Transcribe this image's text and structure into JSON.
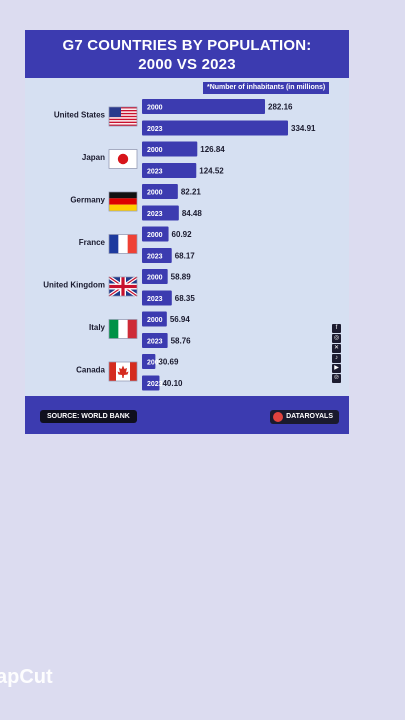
{
  "header": {
    "title_line1": "G7 COUNTRIES BY POPULATION:",
    "title_line2": "2000 VS 2023"
  },
  "unit_note": "*Number of inhabitants (in millions)",
  "footer": {
    "source": "SOURCE: WORLD BANK",
    "brand": "DATAROYALS"
  },
  "watermark": "apCut",
  "colors": {
    "bar": "#3c3bb0",
    "background": "#d6e0f2",
    "accent": "#e0433e"
  },
  "social_icons": [
    "facebook-icon",
    "instagram-icon",
    "x-icon",
    "tiktok-icon",
    "youtube-icon",
    "pinterest-icon"
  ],
  "chart_data": {
    "type": "bar",
    "orientation": "horizontal",
    "title": "G7 COUNTRIES BY POPULATION: 2000 VS 2023",
    "categories": [
      "United States",
      "Japan",
      "Germany",
      "France",
      "United Kingdom",
      "Italy",
      "Canada"
    ],
    "series": [
      {
        "name": "2000",
        "values": [
          282.16,
          126.84,
          82.21,
          60.92,
          58.89,
          56.94,
          30.69
        ]
      },
      {
        "name": "2023",
        "values": [
          334.91,
          124.52,
          84.48,
          68.17,
          68.35,
          58.76,
          40.1
        ]
      }
    ],
    "value_labels": {
      "2000": [
        "282.16",
        "126.84",
        "82.21",
        "60.92",
        "58.89",
        "56.94",
        "30.69"
      ],
      "2023": [
        "334.91",
        "124.52",
        "84.48",
        "68.17",
        "68.35",
        "58.76",
        "40.10"
      ]
    },
    "flags": [
      "us-flag-icon",
      "japan-flag-icon",
      "germany-flag-icon",
      "france-flag-icon",
      "uk-flag-icon",
      "italy-flag-icon",
      "canada-flag-icon"
    ],
    "grid": false,
    "legend": "none"
  }
}
